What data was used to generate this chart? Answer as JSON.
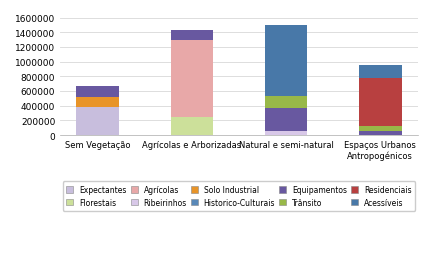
{
  "categories": [
    "Sem Vegetação",
    "Agrícolas e Arborizadas",
    "Natural e semi-natural",
    "Espaços Urbanos\nAntropogénicos"
  ],
  "segments": [
    {
      "label": "Expectantes",
      "color": "#c8bedd",
      "values": [
        380000,
        0,
        0,
        0
      ]
    },
    {
      "label": "Florestais",
      "color": "#cce09a",
      "values": [
        0,
        240000,
        0,
        0
      ]
    },
    {
      "label": "Agrícolas",
      "color": "#e8a8a8",
      "values": [
        0,
        1060000,
        0,
        0
      ]
    },
    {
      "label": "Ribeirinhos",
      "color": "#d8c8e8",
      "values": [
        0,
        0,
        60000,
        0
      ]
    },
    {
      "label": "Solo Industrial",
      "color": "#e89428",
      "values": [
        140000,
        0,
        0,
        0
      ]
    },
    {
      "label": "Historico-Culturais",
      "color": "#5888b8",
      "values": [
        0,
        0,
        0,
        0
      ]
    },
    {
      "label": "Equipamentos",
      "color": "#6858a0",
      "values": [
        150000,
        130000,
        310000,
        60000
      ]
    },
    {
      "label": "Trânsito",
      "color": "#98b848",
      "values": [
        0,
        0,
        160000,
        60000
      ]
    },
    {
      "label": "Residenciais",
      "color": "#b84040",
      "values": [
        0,
        0,
        0,
        660000
      ]
    },
    {
      "label": "Acessíveis",
      "color": "#4878a8",
      "values": [
        0,
        0,
        970000,
        180000
      ]
    }
  ],
  "ylim": [
    0,
    1600000
  ],
  "yticks": [
    0,
    200000,
    400000,
    600000,
    800000,
    1000000,
    1200000,
    1400000,
    1600000
  ],
  "background_color": "#ffffff",
  "grid_color": "#d8d8d8",
  "bar_width": 0.45,
  "figsize": [
    4.39,
    2.55
  ],
  "dpi": 100
}
